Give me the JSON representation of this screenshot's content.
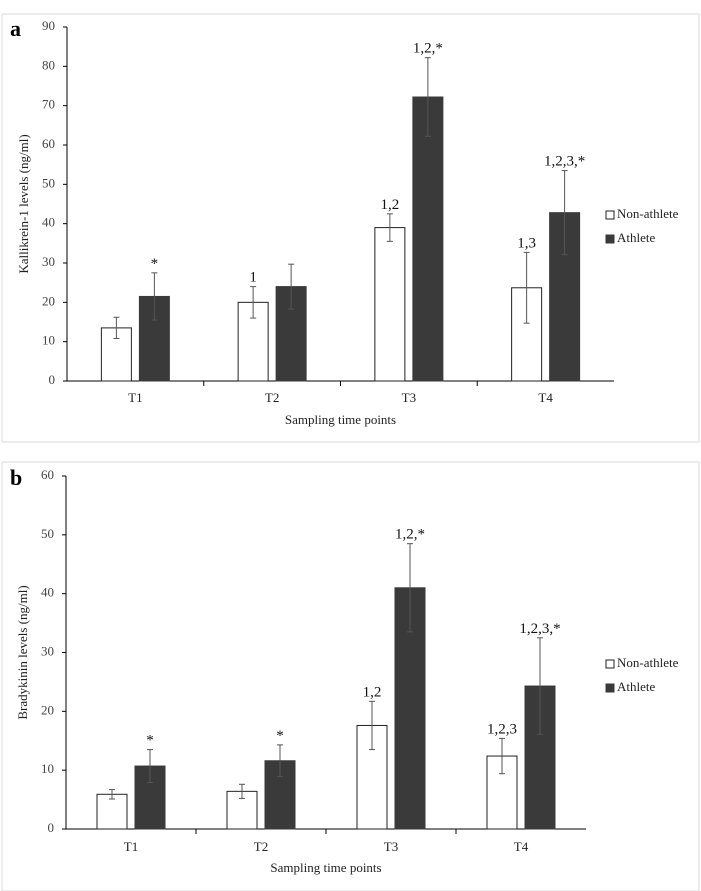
{
  "chart_data": [
    {
      "panel": "a",
      "type": "bar",
      "title": "",
      "xlabel": "Sampling time points",
      "ylabel": "Kallikrein-1  levels (ng/ml)",
      "ylim": [
        0,
        90
      ],
      "yticks": [
        0,
        10,
        20,
        30,
        40,
        50,
        60,
        70,
        80,
        90
      ],
      "categories": [
        "T1",
        "T2",
        "T3",
        "T4"
      ],
      "legend_position": "right",
      "series": [
        {
          "name": "Non-athlete",
          "color": "#ffffff",
          "values": [
            13.5,
            20,
            39,
            23.7
          ],
          "errors": [
            2.7,
            4,
            3.5,
            9
          ],
          "annotations": [
            "",
            "1",
            "1,2",
            "1,3"
          ]
        },
        {
          "name": "Athlete",
          "color": "#3a3a3a",
          "values": [
            21.5,
            24,
            72.2,
            42.8
          ],
          "errors": [
            6,
            5.7,
            10,
            10.7
          ],
          "annotations": [
            "*",
            "",
            "1,2,*",
            "1,2,3,*"
          ]
        }
      ]
    },
    {
      "panel": "b",
      "type": "bar",
      "title": "",
      "xlabel": "Sampling time points",
      "ylabel": "Bradykinin levels (ng/ml)",
      "ylim": [
        0,
        60
      ],
      "yticks": [
        0,
        10,
        20,
        30,
        40,
        50,
        60
      ],
      "categories": [
        "T1",
        "T2",
        "T3",
        "T4"
      ],
      "legend_position": "right",
      "series": [
        {
          "name": "Non-athlete",
          "color": "#ffffff",
          "values": [
            5.9,
            6.4,
            17.6,
            12.4
          ],
          "errors": [
            0.8,
            1.2,
            4.1,
            3
          ],
          "annotations": [
            "",
            "",
            "1,2",
            "1,2,3"
          ]
        },
        {
          "name": "Athlete",
          "color": "#3a3a3a",
          "values": [
            10.7,
            11.6,
            41,
            24.3
          ],
          "errors": [
            2.8,
            2.7,
            7.5,
            8.2
          ],
          "annotations": [
            "*",
            "*",
            "1,2,*",
            "1,2,3,*"
          ]
        }
      ]
    }
  ]
}
